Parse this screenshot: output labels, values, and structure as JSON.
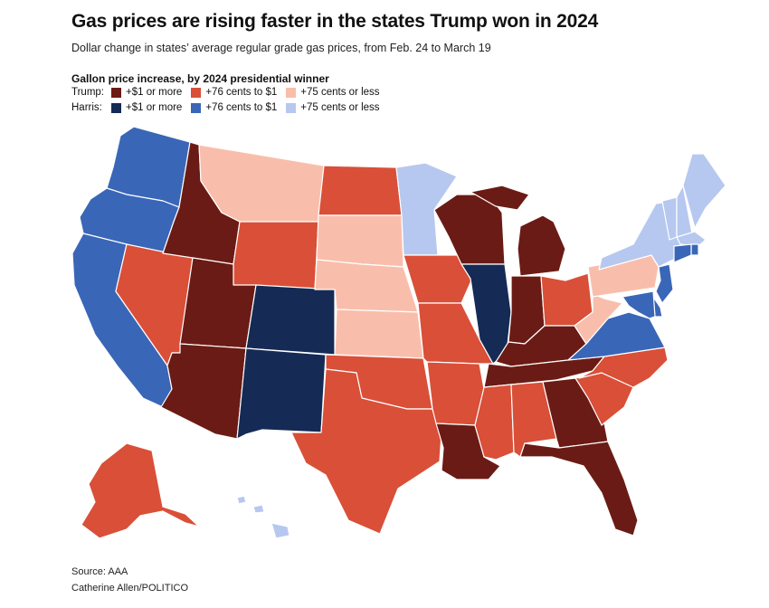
{
  "header": {
    "title": "Gas prices are rising faster in the states Trump won in 2024",
    "subtitle": "Dollar change in states’ average regular grade gas prices, from Feb. 24 to March 19"
  },
  "legend": {
    "heading": "Gallon price increase, by 2024 presidential winner",
    "rows": [
      {
        "label": "Trump:",
        "items": [
          {
            "text": "+$1 or more",
            "color": "#6b1b15"
          },
          {
            "text": "+76 cents to $1",
            "color": "#d94f38"
          },
          {
            "text": "+75 cents or less",
            "color": "#f9beab"
          }
        ]
      },
      {
        "label": "Harris:",
        "items": [
          {
            "text": "+$1 or more",
            "color": "#152b55"
          },
          {
            "text": "+76 cents to $1",
            "color": "#3a66b8"
          },
          {
            "text": "+75 cents or less",
            "color": "#b6c8ef"
          }
        ]
      }
    ]
  },
  "states": [
    {
      "name": "Washington",
      "category": "harris_mid"
    },
    {
      "name": "Oregon",
      "category": "harris_mid"
    },
    {
      "name": "California",
      "category": "harris_mid"
    },
    {
      "name": "Nevada",
      "category": "trump_mid"
    },
    {
      "name": "Idaho",
      "category": "trump_high"
    },
    {
      "name": "Montana",
      "category": "trump_low"
    },
    {
      "name": "Wyoming",
      "category": "trump_mid"
    },
    {
      "name": "Utah",
      "category": "trump_high"
    },
    {
      "name": "Arizona",
      "category": "trump_high"
    },
    {
      "name": "Colorado",
      "category": "harris_high"
    },
    {
      "name": "New Mexico",
      "category": "harris_high"
    },
    {
      "name": "North Dakota",
      "category": "trump_mid"
    },
    {
      "name": "South Dakota",
      "category": "trump_low"
    },
    {
      "name": "Nebraska",
      "category": "trump_low"
    },
    {
      "name": "Kansas",
      "category": "trump_low"
    },
    {
      "name": "Oklahoma",
      "category": "trump_mid"
    },
    {
      "name": "Texas",
      "category": "trump_mid"
    },
    {
      "name": "Minnesota",
      "category": "harris_low"
    },
    {
      "name": "Iowa",
      "category": "trump_mid"
    },
    {
      "name": "Missouri",
      "category": "trump_mid"
    },
    {
      "name": "Arkansas",
      "category": "trump_mid"
    },
    {
      "name": "Louisiana",
      "category": "trump_high"
    },
    {
      "name": "Wisconsin",
      "category": "trump_high"
    },
    {
      "name": "Illinois",
      "category": "harris_high"
    },
    {
      "name": "Michigan",
      "category": "trump_high"
    },
    {
      "name": "Indiana",
      "category": "trump_high"
    },
    {
      "name": "Ohio",
      "category": "trump_mid"
    },
    {
      "name": "Kentucky",
      "category": "trump_high"
    },
    {
      "name": "Tennessee",
      "category": "trump_high"
    },
    {
      "name": "Mississippi",
      "category": "trump_mid"
    },
    {
      "name": "Alabama",
      "category": "trump_mid"
    },
    {
      "name": "Georgia",
      "category": "trump_high"
    },
    {
      "name": "Florida",
      "category": "trump_high"
    },
    {
      "name": "South Carolina",
      "category": "trump_mid"
    },
    {
      "name": "North Carolina",
      "category": "trump_mid"
    },
    {
      "name": "Virginia",
      "category": "harris_mid"
    },
    {
      "name": "West Virginia",
      "category": "trump_low"
    },
    {
      "name": "Pennsylvania",
      "category": "trump_low"
    },
    {
      "name": "New York",
      "category": "harris_low"
    },
    {
      "name": "Vermont",
      "category": "harris_low"
    },
    {
      "name": "New Hampshire",
      "category": "harris_low"
    },
    {
      "name": "Maine",
      "category": "harris_low"
    },
    {
      "name": "Massachusetts",
      "category": "harris_low"
    },
    {
      "name": "Rhode Island",
      "category": "harris_mid"
    },
    {
      "name": "Connecticut",
      "category": "harris_mid"
    },
    {
      "name": "New Jersey",
      "category": "harris_mid"
    },
    {
      "name": "Delaware",
      "category": "harris_mid"
    },
    {
      "name": "Maryland",
      "category": "harris_mid"
    },
    {
      "name": "Alaska",
      "category": "trump_mid"
    },
    {
      "name": "Hawaii",
      "category": "harris_low"
    }
  ],
  "colors": {
    "trump_high": "#6b1b15",
    "trump_mid": "#d94f38",
    "trump_low": "#f9beab",
    "harris_high": "#152b55",
    "harris_mid": "#3a66b8",
    "harris_low": "#b6c8ef"
  },
  "footer": {
    "source": "Source: AAA",
    "credit": "Catherine Allen/POLITICO"
  }
}
